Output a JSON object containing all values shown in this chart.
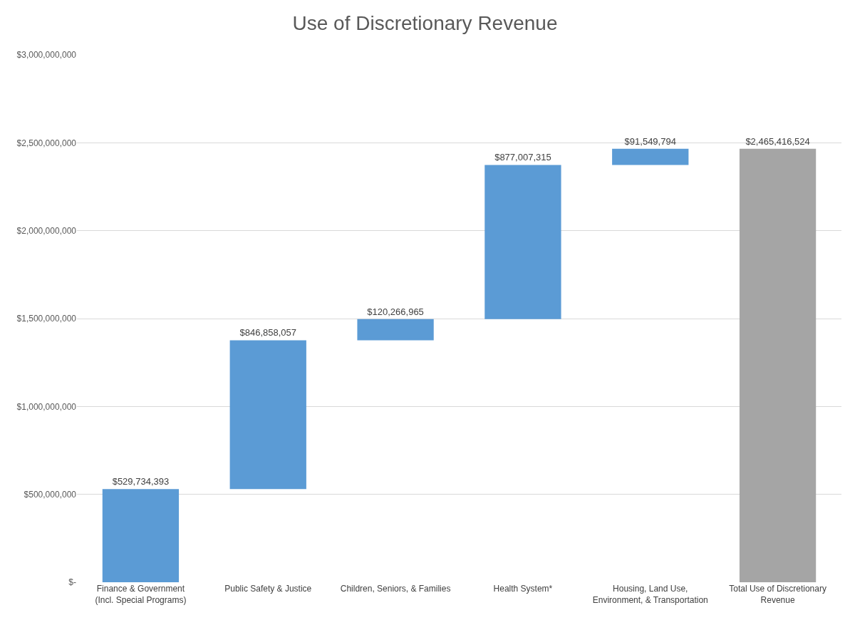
{
  "chart_data": {
    "type": "bar",
    "title": "Use of Discretionary Revenue",
    "categories": [
      "Finance & Government\n(Incl. Special Programs)",
      "Public Safety & Justice",
      "Children, Seniors, & Families",
      "Health System*",
      "Housing, Land Use,\nEnvironment, & Transportation",
      "Total Use of Discretionary\nRevenue"
    ],
    "values": [
      529734393,
      846858057,
      120266965,
      877007315,
      91549794,
      2465416524
    ],
    "base": [
      0,
      529734393,
      1376592450,
      1496859415,
      2373866730,
      0
    ],
    "colors": [
      "#5b9bd5",
      "#5b9bd5",
      "#5b9bd5",
      "#5b9bd5",
      "#5b9bd5",
      "#a5a5a5"
    ],
    "value_labels": [
      "$529,734,393",
      "$846,858,057",
      "$120,266,965",
      "$877,007,315",
      "$91,549,794",
      "$2,465,416,524"
    ],
    "ylim": [
      0,
      3000000000
    ],
    "yticks": [
      {
        "value": 0,
        "label": "$-"
      },
      {
        "value": 500000000,
        "label": "$500,000,000"
      },
      {
        "value": 1000000000,
        "label": "$1,000,000,000"
      },
      {
        "value": 1500000000,
        "label": "$1,500,000,000"
      },
      {
        "value": 2000000000,
        "label": "$2,000,000,000"
      },
      {
        "value": 2500000000,
        "label": "$2,500,000,000"
      },
      {
        "value": 3000000000,
        "label": "$3,000,000,000"
      }
    ],
    "grid": "y"
  }
}
